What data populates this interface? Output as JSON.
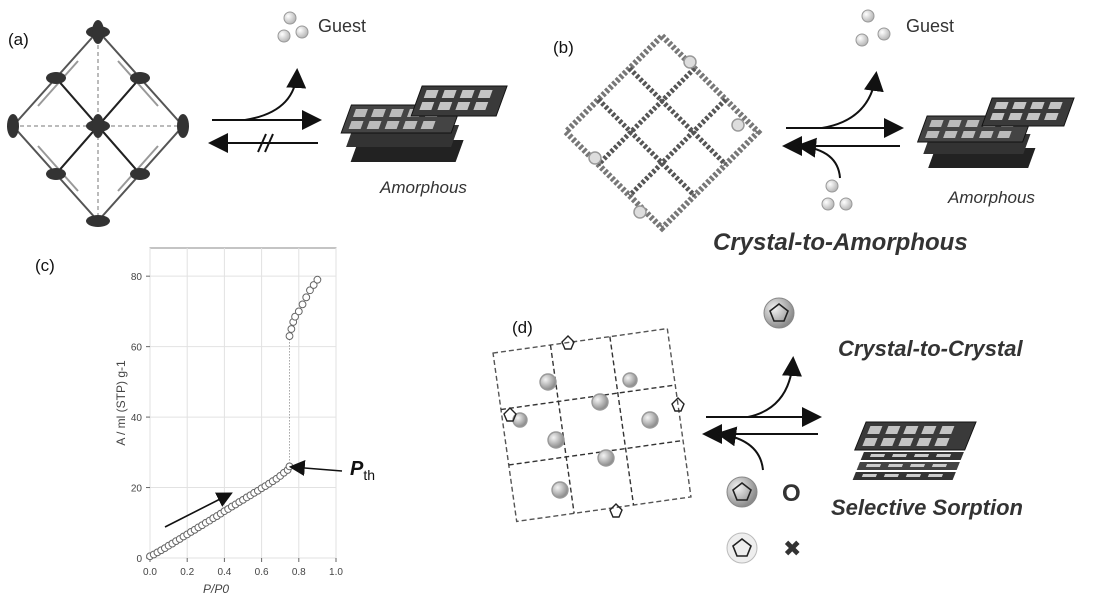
{
  "panels": {
    "a": {
      "label": "(a)",
      "guest": "Guest",
      "product": "Amorphous"
    },
    "b": {
      "label": "(b)",
      "guest": "Guest",
      "product": "Amorphous",
      "title": "Crystal-to-Amorphous"
    },
    "c": {
      "label": "(c)",
      "pth_main": "P",
      "pth_sub": "th"
    },
    "d": {
      "label": "(d)",
      "title": "Crystal-to-Crystal",
      "selective": "Selective Sorption",
      "accepted_mark": "O",
      "rejected_mark": "✖"
    }
  },
  "chart_data": {
    "type": "scatter",
    "title": "",
    "xlabel": "P/P0",
    "ylabel": "A / ml (STP) g-1",
    "xlim": [
      0.0,
      1.0
    ],
    "ylim": [
      0,
      88
    ],
    "xticks": [
      "0.0",
      "0.2",
      "0.4",
      "0.6",
      "0.8",
      "1.0"
    ],
    "yticks": [
      "0",
      "20",
      "40",
      "60",
      "80"
    ],
    "grid": true,
    "annotation": "Pth",
    "series": [
      {
        "values_x": [
          0.0,
          0.02,
          0.04,
          0.06,
          0.08,
          0.1,
          0.12,
          0.14,
          0.16,
          0.18,
          0.2,
          0.22,
          0.24,
          0.26,
          0.28,
          0.3,
          0.32,
          0.34,
          0.36,
          0.38,
          0.4,
          0.42,
          0.44,
          0.46,
          0.48,
          0.5,
          0.52,
          0.54,
          0.56,
          0.58,
          0.6,
          0.62,
          0.64,
          0.66,
          0.68,
          0.7,
          0.72,
          0.74,
          0.75,
          0.75,
          0.76,
          0.77,
          0.78,
          0.8,
          0.82,
          0.84,
          0.86,
          0.88,
          0.9
        ],
        "values_y": [
          0.5,
          1,
          1.6,
          2.2,
          2.8,
          3.5,
          4.1,
          4.8,
          5.4,
          6.1,
          6.7,
          7.4,
          8.0,
          8.7,
          9.3,
          10.0,
          10.6,
          11.3,
          11.9,
          12.6,
          13.3,
          13.9,
          14.6,
          15.2,
          15.9,
          16.5,
          17.2,
          17.8,
          18.5,
          19.1,
          19.8,
          20.4,
          21.1,
          21.8,
          22.5,
          23.3,
          24.2,
          25.0,
          26.0,
          63,
          65,
          67,
          68.5,
          70,
          72,
          74,
          76,
          77.5,
          79
        ]
      }
    ]
  }
}
